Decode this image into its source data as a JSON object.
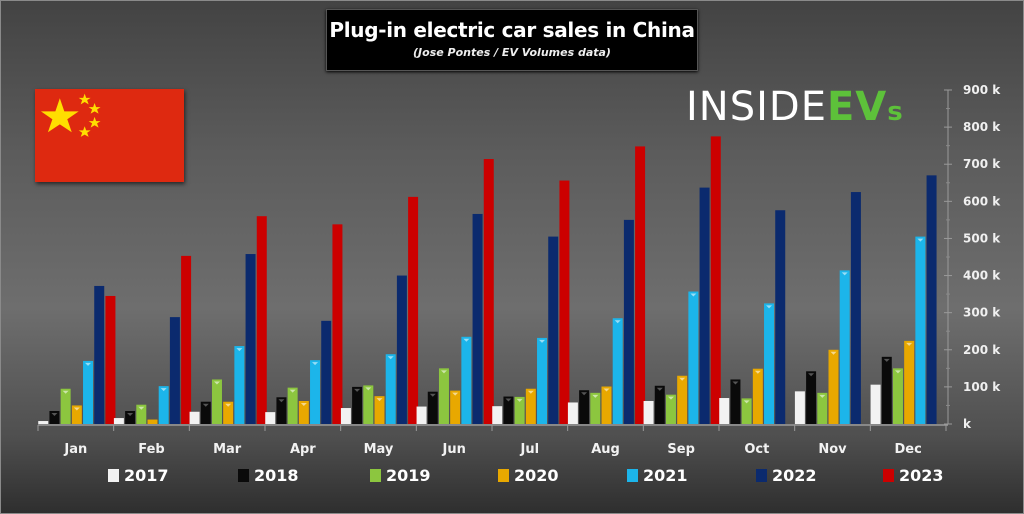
{
  "title": "Plug-in electric car sales in China",
  "subtitle": "(Jose Pontes / EV Volumes data)",
  "logo": {
    "part1": "INSIDE",
    "part2": "EV",
    "part3": "s"
  },
  "flag": "china-flag",
  "chart_data": {
    "type": "bar",
    "title": "Plug-in electric car sales in China",
    "subtitle": "(Jose Pontes / EV Volumes data)",
    "xlabel": "",
    "ylabel": "",
    "ylim": [
      0,
      900
    ],
    "y_unit": "k",
    "y_ticks": [
      0,
      100,
      200,
      300,
      400,
      500,
      600,
      700,
      800,
      900
    ],
    "y_tick_labels": [
      "k",
      "100 k",
      "200 k",
      "300 k",
      "400 k",
      "500 k",
      "600 k",
      "700 k",
      "800 k",
      "900 k"
    ],
    "y_axis_side": "right",
    "grid": false,
    "legend_position": "bottom",
    "categories": [
      "Jan",
      "Feb",
      "Mar",
      "Apr",
      "May",
      "Jun",
      "Jul",
      "Aug",
      "Sep",
      "Oct",
      "Nov",
      "Dec"
    ],
    "series": [
      {
        "name": "2017",
        "color": "#f2f2f2",
        "values": [
          8,
          16,
          33,
          32,
          43,
          47,
          48,
          58,
          62,
          70,
          88,
          106
        ]
      },
      {
        "name": "2018",
        "color": "#0a0a0a",
        "values": [
          35,
          35,
          60,
          72,
          100,
          87,
          74,
          91,
          103,
          120,
          142,
          181
        ]
      },
      {
        "name": "2019",
        "color": "#8cc63f",
        "values": [
          95,
          52,
          120,
          98,
          104,
          150,
          73,
          84,
          79,
          69,
          84,
          150
        ]
      },
      {
        "name": "2020",
        "color": "#e8a800",
        "values": [
          50,
          12,
          60,
          62,
          75,
          90,
          95,
          101,
          130,
          149,
          200,
          224
        ]
      },
      {
        "name": "2021",
        "color": "#1cb5ea",
        "values": [
          170,
          102,
          210,
          172,
          188,
          235,
          232,
          285,
          357,
          325,
          414,
          505
        ]
      },
      {
        "name": "2022",
        "color": "#0b2a6e",
        "values": [
          372,
          288,
          458,
          278,
          400,
          566,
          505,
          550,
          637,
          576,
          625,
          670
        ]
      },
      {
        "name": "2023",
        "color": "#cc0000",
        "values": [
          345,
          453,
          560,
          538,
          612,
          714,
          656,
          748,
          775,
          null,
          null,
          null
        ]
      }
    ]
  }
}
